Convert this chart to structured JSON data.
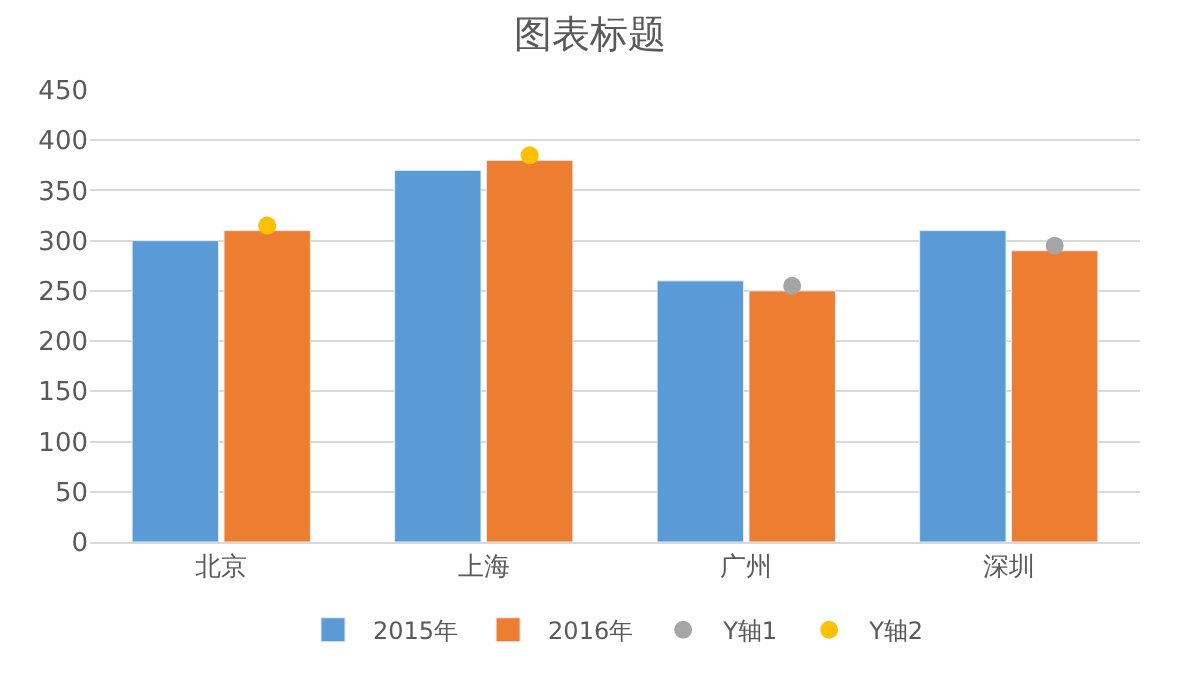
{
  "chart_data": {
    "type": "bar",
    "title": "图表标题",
    "categories": [
      "北京",
      "上海",
      "广州",
      "深圳"
    ],
    "series": [
      {
        "name": "2015年",
        "color": "#5b9bd5",
        "values": [
          300,
          370,
          260,
          310
        ]
      },
      {
        "name": "2016年",
        "color": "#ed7d31",
        "values": [
          310,
          380,
          250,
          290
        ]
      },
      {
        "name": "Y轴1",
        "type": "scatter",
        "marker": "circle",
        "color": "#a5a5a5",
        "x": [
          "北京",
          "上海",
          "广州",
          "深圳"
        ],
        "values": [
          null,
          null,
          255,
          295
        ]
      },
      {
        "name": "Y轴2",
        "type": "scatter",
        "marker": "circle",
        "color": "#ffc000",
        "x": [
          "北京",
          "上海",
          "广州",
          "深圳"
        ],
        "values": [
          315,
          385,
          null,
          null
        ]
      }
    ],
    "ylim": [
      0,
      450
    ],
    "yticks": [
      0,
      50,
      100,
      150,
      200,
      250,
      300,
      350,
      400,
      450
    ],
    "grid": "y",
    "legend": "bottom"
  }
}
